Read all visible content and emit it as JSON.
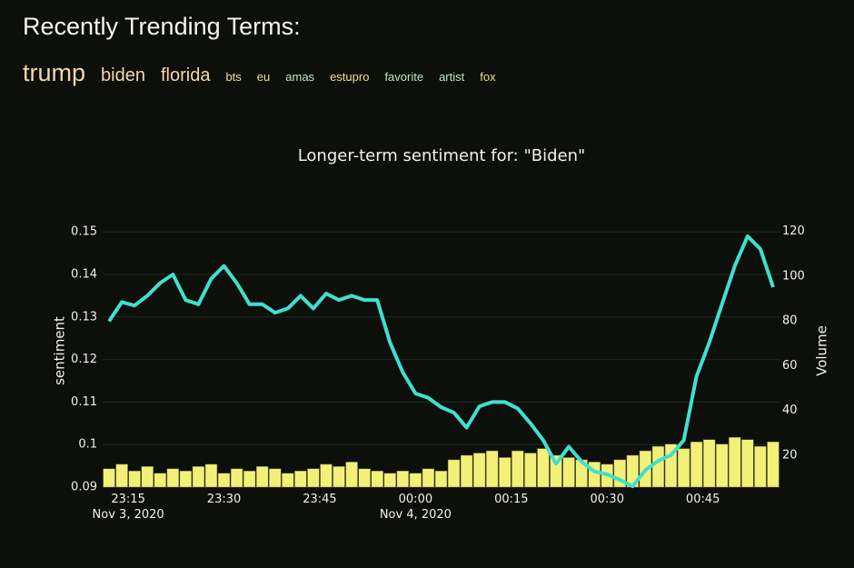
{
  "header": {
    "title": "Recently Trending Terms:",
    "terms": [
      {
        "text": "trump",
        "color": "#f6d7a7"
      },
      {
        "text": "biden",
        "color": "#f6d7a7"
      },
      {
        "text": "florida",
        "color": "#f6d7a7"
      },
      {
        "text": "bts",
        "color": "#eee08c"
      },
      {
        "text": "eu",
        "color": "#eee08c"
      },
      {
        "text": "amas",
        "color": "#bfe6c4"
      },
      {
        "text": "estupro",
        "color": "#eee08c"
      },
      {
        "text": "favorite",
        "color": "#bfe6c4"
      },
      {
        "text": "artist",
        "color": "#bfe6c4"
      },
      {
        "text": "fox",
        "color": "#eee08c"
      }
    ]
  },
  "chart_data": {
    "type": "line-bar",
    "title": "Longer-term sentiment for: \"Biden\"",
    "y_label": "sentiment",
    "y2_label": "Volume",
    "x": [
      "2020-11-03 23:12",
      "2020-11-03 23:14",
      "2020-11-03 23:16",
      "2020-11-03 23:18",
      "2020-11-03 23:20",
      "2020-11-03 23:22",
      "2020-11-03 23:24",
      "2020-11-03 23:26",
      "2020-11-03 23:28",
      "2020-11-03 23:30",
      "2020-11-03 23:32",
      "2020-11-03 23:34",
      "2020-11-03 23:36",
      "2020-11-03 23:38",
      "2020-11-03 23:40",
      "2020-11-03 23:42",
      "2020-11-03 23:44",
      "2020-11-03 23:46",
      "2020-11-03 23:48",
      "2020-11-03 23:50",
      "2020-11-03 23:52",
      "2020-11-03 23:54",
      "2020-11-03 23:56",
      "2020-11-03 23:58",
      "2020-11-04 00:00",
      "2020-11-04 00:02",
      "2020-11-04 00:04",
      "2020-11-04 00:06",
      "2020-11-04 00:08",
      "2020-11-04 00:10",
      "2020-11-04 00:12",
      "2020-11-04 00:14",
      "2020-11-04 00:16",
      "2020-11-04 00:18",
      "2020-11-04 00:20",
      "2020-11-04 00:22",
      "2020-11-04 00:24",
      "2020-11-04 00:26",
      "2020-11-04 00:28",
      "2020-11-04 00:30",
      "2020-11-04 00:32",
      "2020-11-04 00:34",
      "2020-11-04 00:36",
      "2020-11-04 00:38",
      "2020-11-04 00:40",
      "2020-11-04 00:42",
      "2020-11-04 00:44",
      "2020-11-04 00:46",
      "2020-11-04 00:48",
      "2020-11-04 00:50",
      "2020-11-04 00:52",
      "2020-11-04 00:54",
      "2020-11-04 00:56"
    ],
    "series": [
      {
        "name": "sentiment",
        "type": "line",
        "color": "#3fe0cf",
        "values": [
          0.129,
          0.1335,
          0.1327,
          0.135,
          0.138,
          0.14,
          0.134,
          0.133,
          0.139,
          0.142,
          0.138,
          0.133,
          0.133,
          0.131,
          0.132,
          0.135,
          0.132,
          0.1355,
          0.134,
          0.135,
          0.134,
          0.134,
          0.124,
          0.117,
          0.112,
          0.111,
          0.1088,
          0.1075,
          0.104,
          0.109,
          0.11,
          0.11,
          0.1085,
          0.105,
          0.101,
          0.0955,
          0.0995,
          0.096,
          0.0937,
          0.093,
          0.0917,
          0.0902,
          0.094,
          0.0962,
          0.0975,
          0.101,
          0.116,
          0.124,
          0.133,
          0.142,
          0.149,
          0.146,
          0.137
        ]
      },
      {
        "name": "Volume",
        "type": "bar",
        "axis": "y2",
        "color": "#f3f07a",
        "values": [
          14,
          16,
          13,
          15,
          12,
          14,
          13,
          15,
          16,
          12,
          14,
          13,
          15,
          14,
          12,
          13,
          14,
          16,
          15,
          17,
          14,
          13,
          12,
          13,
          12,
          14,
          13,
          18,
          20,
          21,
          22,
          19,
          22,
          21,
          23,
          20,
          19,
          18,
          17,
          16,
          18,
          20,
          22,
          24,
          25,
          23,
          26,
          27,
          25,
          28,
          27,
          24,
          26
        ]
      }
    ],
    "xlim": [
      "2020-11-03 23:11",
      "2020-11-04 00:57"
    ],
    "xticks": [
      {
        "value": "2020-11-03 23:15",
        "label": "23:15\nNov 3, 2020"
      },
      {
        "value": "2020-11-03 23:30",
        "label": "23:30"
      },
      {
        "value": "2020-11-03 23:45",
        "label": "23:45"
      },
      {
        "value": "2020-11-04 00:00",
        "label": "00:00\nNov 4, 2020"
      },
      {
        "value": "2020-11-04 00:15",
        "label": "00:15"
      },
      {
        "value": "2020-11-04 00:30",
        "label": "00:30"
      },
      {
        "value": "2020-11-04 00:45",
        "label": "00:45"
      }
    ],
    "ylim": [
      0.09,
      0.1541
    ],
    "yticks": [
      0.09,
      0.1,
      0.11,
      0.12,
      0.13,
      0.14,
      0.15
    ],
    "y2lim": [
      5.8,
      127.5
    ],
    "y2ticks": [
      20,
      40,
      60,
      80,
      100,
      120
    ],
    "grid": true
  }
}
